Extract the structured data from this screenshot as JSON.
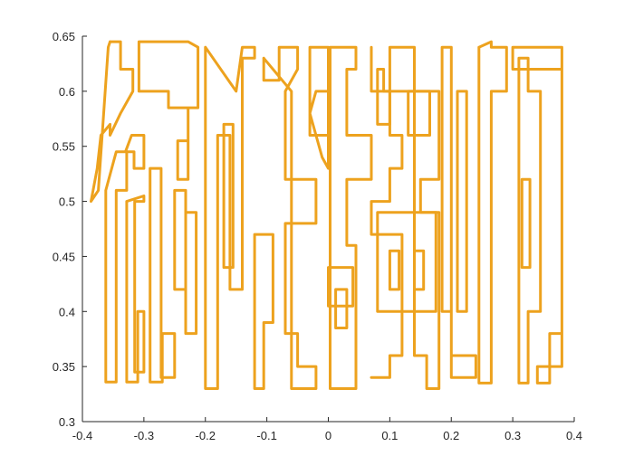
{
  "chart_data": {
    "type": "line",
    "title": "",
    "xlabel": "",
    "ylabel": "",
    "xlim": [
      -0.4,
      0.4
    ],
    "ylim": [
      0.3,
      0.65
    ],
    "xticks": [
      -0.4,
      -0.3,
      -0.2,
      -0.1,
      0,
      0.1,
      0.2,
      0.3,
      0.4
    ],
    "xtick_labels": [
      "-0.4",
      "-0.3",
      "-0.2",
      "-0.1",
      "0",
      "0.1",
      "0.2",
      "0.3",
      "0.4"
    ],
    "yticks": [
      0.3,
      0.35,
      0.4,
      0.45,
      0.5,
      0.55,
      0.6,
      0.65
    ],
    "ytick_labels": [
      "0.3",
      "0.35",
      "0.4",
      "0.45",
      "0.5",
      "0.55",
      "0.6",
      "0.65"
    ],
    "grid": false,
    "box": "left-bottom",
    "line_color": "#EDA21E",
    "series": [
      {
        "x": [
          -0.355,
          -0.338,
          -0.338,
          -0.318,
          -0.318,
          -0.338,
          -0.355,
          -0.355,
          -0.37,
          -0.376,
          -0.386,
          -0.386,
          -0.374,
          -0.358,
          -0.355
        ],
        "y": [
          0.645,
          0.645,
          0.62,
          0.62,
          0.6,
          0.58,
          0.56,
          0.57,
          0.56,
          0.53,
          0.5,
          0.5,
          0.51,
          0.64,
          0.645
        ]
      },
      {
        "x": [
          -0.362,
          -0.362,
          -0.345,
          -0.345,
          -0.328,
          -0.328,
          -0.316,
          -0.316,
          -0.3,
          -0.3,
          -0.32,
          -0.33,
          -0.345,
          -0.362
        ],
        "y": [
          0.51,
          0.336,
          0.336,
          0.51,
          0.51,
          0.545,
          0.545,
          0.53,
          0.53,
          0.56,
          0.56,
          0.545,
          0.545,
          0.51
        ]
      },
      {
        "x": [
          -0.308,
          -0.308,
          -0.26,
          -0.26,
          -0.228,
          -0.228,
          -0.245,
          -0.245,
          -0.228,
          -0.228,
          -0.212,
          -0.212,
          -0.228,
          -0.245,
          -0.308
        ],
        "y": [
          0.645,
          0.6,
          0.6,
          0.585,
          0.585,
          0.555,
          0.555,
          0.52,
          0.52,
          0.585,
          0.585,
          0.64,
          0.645,
          0.645,
          0.645
        ]
      },
      {
        "x": [
          -0.328,
          -0.328,
          -0.31,
          -0.31,
          -0.3,
          -0.3,
          -0.315,
          -0.315,
          -0.3,
          -0.3,
          -0.328
        ],
        "y": [
          0.5,
          0.336,
          0.336,
          0.4,
          0.4,
          0.345,
          0.345,
          0.5,
          0.5,
          0.505,
          0.5
        ]
      },
      {
        "x": [
          -0.29,
          -0.29,
          -0.27,
          -0.27,
          -0.25,
          -0.25,
          -0.272,
          -0.272,
          -0.29
        ],
        "y": [
          0.53,
          0.336,
          0.336,
          0.38,
          0.38,
          0.34,
          0.34,
          0.53,
          0.53
        ]
      },
      {
        "x": [
          -0.25,
          -0.25,
          -0.232,
          -0.232,
          -0.215,
          -0.215,
          -0.232,
          -0.232,
          -0.25
        ],
        "y": [
          0.51,
          0.42,
          0.42,
          0.49,
          0.49,
          0.38,
          0.38,
          0.51,
          0.51
        ]
      },
      {
        "x": [
          -0.2,
          -0.2,
          -0.18,
          -0.18,
          -0.16,
          -0.16,
          -0.14,
          -0.14,
          -0.12,
          -0.12,
          -0.14,
          -0.15,
          -0.2
        ],
        "y": [
          0.64,
          0.33,
          0.33,
          0.56,
          0.56,
          0.42,
          0.42,
          0.63,
          0.63,
          0.64,
          0.64,
          0.6,
          0.64
        ]
      },
      {
        "x": [
          -0.17,
          -0.17,
          -0.155,
          -0.155,
          -0.17
        ],
        "y": [
          0.57,
          0.44,
          0.44,
          0.57,
          0.57
        ]
      },
      {
        "x": [
          -0.12,
          -0.12,
          -0.105,
          -0.105,
          -0.09,
          -0.09,
          -0.105,
          -0.12
        ],
        "y": [
          0.47,
          0.33,
          0.33,
          0.39,
          0.39,
          0.47,
          0.47,
          0.47
        ]
      },
      {
        "x": [
          -0.105,
          -0.105,
          -0.08,
          -0.08,
          -0.05,
          -0.05,
          -0.07,
          -0.07,
          -0.02,
          -0.02,
          -0.07,
          -0.07,
          -0.05,
          -0.05,
          -0.02,
          -0.02,
          -0.06,
          -0.06,
          -0.105
        ],
        "y": [
          0.63,
          0.61,
          0.61,
          0.64,
          0.64,
          0.62,
          0.6,
          0.52,
          0.52,
          0.48,
          0.48,
          0.38,
          0.38,
          0.35,
          0.35,
          0.33,
          0.33,
          0.6,
          0.63
        ]
      },
      {
        "x": [
          -0.03,
          -0.03,
          0.0,
          0.0,
          -0.02,
          -0.03,
          -0.01,
          0.0,
          0.0,
          -0.03
        ],
        "y": [
          0.64,
          0.56,
          0.56,
          0.6,
          0.6,
          0.58,
          0.54,
          0.53,
          0.64,
          0.64
        ]
      },
      {
        "x": [
          0.003,
          0.003,
          0.045,
          0.045,
          0.03,
          0.03,
          0.07,
          0.07,
          0.03,
          0.03,
          0.045,
          0.045,
          0.003
        ],
        "y": [
          0.64,
          0.33,
          0.33,
          0.46,
          0.46,
          0.52,
          0.52,
          0.56,
          0.56,
          0.62,
          0.62,
          0.64,
          0.64
        ]
      },
      {
        "x": [
          0.0,
          0.0,
          0.04,
          0.04,
          0.0
        ],
        "y": [
          0.44,
          0.405,
          0.405,
          0.44,
          0.44
        ]
      },
      {
        "x": [
          0.012,
          0.012,
          0.03,
          0.03,
          0.012
        ],
        "y": [
          0.42,
          0.385,
          0.385,
          0.42,
          0.42
        ]
      },
      {
        "x": [
          0.07,
          0.07,
          0.1,
          0.1,
          0.12,
          0.12,
          0.1,
          0.1,
          0.07,
          0.07,
          0.12,
          0.12,
          0.1,
          0.1,
          0.07
        ],
        "y": [
          0.64,
          0.6,
          0.6,
          0.56,
          0.56,
          0.53,
          0.53,
          0.5,
          0.5,
          0.47,
          0.47,
          0.36,
          0.36,
          0.34,
          0.34
        ]
      },
      {
        "x": [
          0.08,
          0.08,
          0.1,
          0.1,
          0.09,
          0.09,
          0.08
        ],
        "y": [
          0.62,
          0.57,
          0.57,
          0.6,
          0.6,
          0.62,
          0.62
        ]
      },
      {
        "x": [
          0.1,
          0.1,
          0.18,
          0.18,
          0.15,
          0.15,
          0.18,
          0.18,
          0.16,
          0.16,
          0.14,
          0.14,
          0.1
        ],
        "y": [
          0.64,
          0.6,
          0.6,
          0.52,
          0.52,
          0.49,
          0.49,
          0.33,
          0.33,
          0.36,
          0.36,
          0.64,
          0.64
        ]
      },
      {
        "x": [
          0.13,
          0.13,
          0.165,
          0.165,
          0.13
        ],
        "y": [
          0.6,
          0.56,
          0.56,
          0.6,
          0.6
        ]
      },
      {
        "x": [
          0.08,
          0.08,
          0.175,
          0.175,
          0.08
        ],
        "y": [
          0.49,
          0.4,
          0.4,
          0.49,
          0.49
        ]
      },
      {
        "x": [
          0.1,
          0.1,
          0.115,
          0.115,
          0.1
        ],
        "y": [
          0.455,
          0.42,
          0.42,
          0.455,
          0.455
        ]
      },
      {
        "x": [
          0.14,
          0.14,
          0.155,
          0.155,
          0.14
        ],
        "y": [
          0.455,
          0.42,
          0.42,
          0.455,
          0.455
        ]
      },
      {
        "x": [
          0.185,
          0.185,
          0.2,
          0.2,
          0.24,
          0.24,
          0.2,
          0.2,
          0.185
        ],
        "y": [
          0.64,
          0.4,
          0.4,
          0.36,
          0.36,
          0.34,
          0.34,
          0.64,
          0.64
        ]
      },
      {
        "x": [
          0.21,
          0.21,
          0.225,
          0.225,
          0.21
        ],
        "y": [
          0.6,
          0.4,
          0.4,
          0.6,
          0.6
        ]
      },
      {
        "x": [
          0.245,
          0.245,
          0.265,
          0.265,
          0.29,
          0.29,
          0.265,
          0.265,
          0.245
        ],
        "y": [
          0.64,
          0.335,
          0.335,
          0.6,
          0.6,
          0.64,
          0.64,
          0.645,
          0.64
        ]
      },
      {
        "x": [
          0.31,
          0.31,
          0.325,
          0.325,
          0.345,
          0.345,
          0.325,
          0.325,
          0.31
        ],
        "y": [
          0.63,
          0.335,
          0.335,
          0.4,
          0.4,
          0.6,
          0.6,
          0.63,
          0.63
        ]
      },
      {
        "x": [
          0.3,
          0.3,
          0.38,
          0.38,
          0.36,
          0.36,
          0.34,
          0.34,
          0.38,
          0.38,
          0.3
        ],
        "y": [
          0.64,
          0.62,
          0.62,
          0.38,
          0.38,
          0.335,
          0.335,
          0.35,
          0.35,
          0.64,
          0.64
        ]
      },
      {
        "x": [
          0.315,
          0.315,
          0.328,
          0.328,
          0.315
        ],
        "y": [
          0.52,
          0.44,
          0.44,
          0.52,
          0.52
        ]
      }
    ]
  }
}
